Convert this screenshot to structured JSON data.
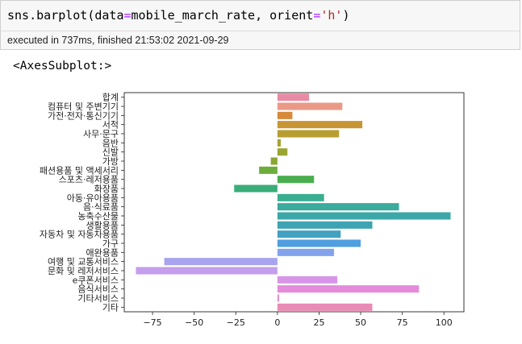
{
  "cell": {
    "code_func": "sns.barplot",
    "code_open": "(",
    "code_arg1_name": "data",
    "code_eq": "=",
    "code_arg1_val": "mobile_march_rate",
    "code_sep": ", ",
    "code_arg2_name": "orient",
    "code_arg2_val": "'h'",
    "code_close": ")",
    "exec_status": "executed in 737ms, finished 21:53:02 2021-09-29",
    "output_repr": "<AxesSubplot:>"
  },
  "chart_data": {
    "type": "bar",
    "orientation": "horizontal",
    "categories": [
      "합계",
      "컴퓨터 및 주변기기",
      "가전·전자·통신기기",
      "서적",
      "사무·문구",
      "음반",
      "신발",
      "가방",
      "패션용품 및 액세서리",
      "스포츠·레저용품",
      "화장품",
      "아동·유아용품",
      "음·식료품",
      "농축수산물",
      "생활용품",
      "자동차 및 자동차용품",
      "가구",
      "애완용품",
      "여행 및 교통서비스",
      "문화 및 레저서비스",
      "e쿠폰서비스",
      "음식서비스",
      "기타서비스",
      "기타"
    ],
    "values": [
      19,
      39,
      9,
      51,
      37,
      2,
      6,
      -4,
      -11,
      22,
      -26,
      28,
      73,
      104,
      57,
      38,
      50,
      34,
      -68,
      -85,
      36,
      85,
      1,
      57
    ],
    "colors": [
      "#e88ba4",
      "#e99a87",
      "#d78b3a",
      "#c79533",
      "#b89d32",
      "#a8a232",
      "#9aa532",
      "#8aa734",
      "#6cac3d",
      "#4aae4f",
      "#39ae78",
      "#39ae90",
      "#3aab9c",
      "#3ca7a8",
      "#3ea3b3",
      "#43a1c1",
      "#4f9ee0",
      "#82a3ec",
      "#a8a4ee",
      "#c49fec",
      "#d895e7",
      "#e48bdb",
      "#e78bcb",
      "#e88bb5"
    ],
    "xlim": [
      -92,
      112
    ],
    "xticks": [
      -75,
      -50,
      -25,
      0,
      25,
      50,
      75,
      100
    ],
    "xlabel": "",
    "ylabel": "",
    "title": "",
    "grid": false
  }
}
